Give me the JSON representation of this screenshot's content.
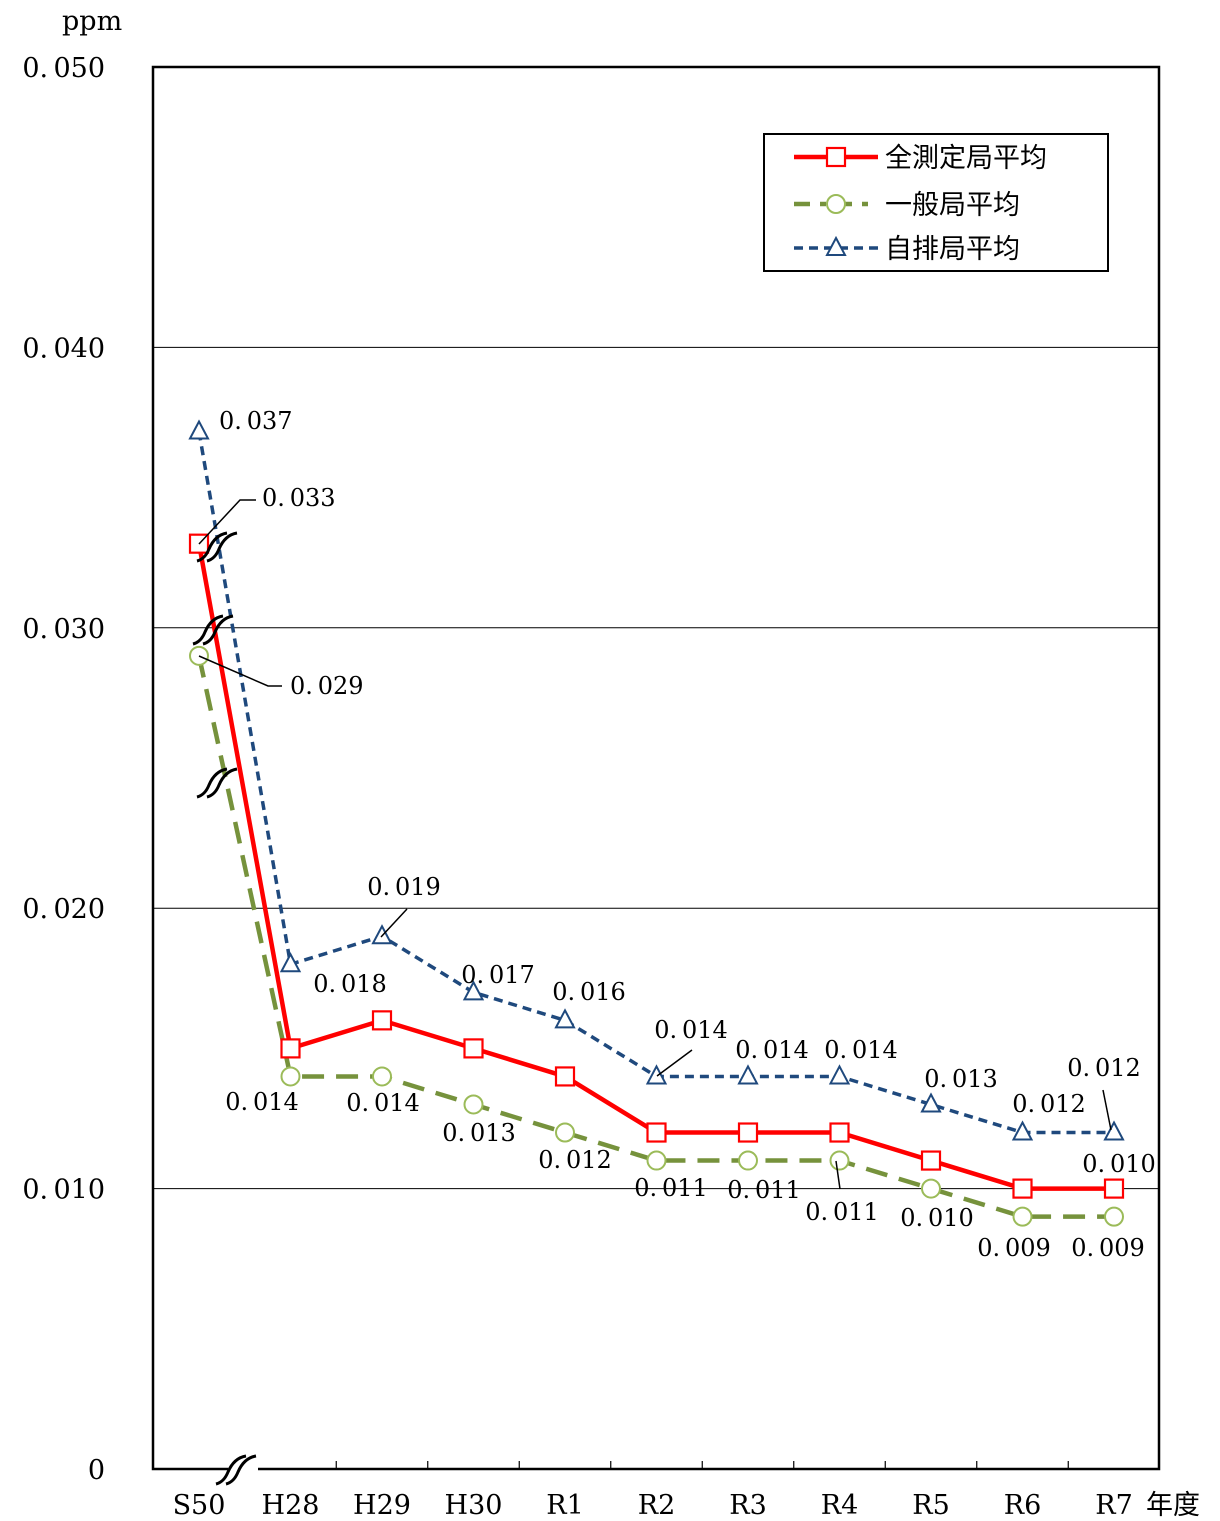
{
  "chart_data": {
    "type": "line",
    "ylabel": "ppm",
    "xlabel": "年度",
    "ylim": [
      0,
      0.05
    ],
    "y_ticks": [
      {
        "value": 0,
        "label": "0"
      },
      {
        "value": 0.01,
        "label": "0.010"
      },
      {
        "value": 0.02,
        "label": "0.020"
      },
      {
        "value": 0.03,
        "label": "0.030"
      },
      {
        "value": 0.04,
        "label": "0.040"
      },
      {
        "value": 0.05,
        "label": "0.050"
      }
    ],
    "categories": [
      "S50",
      "H28",
      "H29",
      "H30",
      "R1",
      "R2",
      "R3",
      "R4",
      "R5",
      "R6",
      "R7"
    ],
    "grid": true,
    "axis_break": "between S50 and H28",
    "legend_position": "top-right",
    "series": [
      {
        "name": "全測定局平均",
        "color": "#ff0000",
        "line_style": "solid",
        "marker": "square",
        "values": [
          0.033,
          0.015,
          0.016,
          0.015,
          0.014,
          0.012,
          0.012,
          0.012,
          0.011,
          0.01,
          0.01
        ],
        "labels": [
          "0.033",
          "",
          "",
          "",
          "",
          "",
          "",
          "",
          "",
          "",
          "0.010"
        ]
      },
      {
        "name": "一般局平均",
        "color": "#76923c",
        "line_style": "dashed",
        "marker": "circle",
        "values": [
          0.029,
          0.014,
          0.014,
          0.013,
          0.012,
          0.011,
          0.011,
          0.011,
          0.01,
          0.009,
          0.009
        ],
        "labels": [
          "0.029",
          "0.014",
          "0.014",
          "0.013",
          "0.012",
          "0.011",
          "0.011",
          "0.011",
          "0.010",
          "0.009",
          "0.009"
        ]
      },
      {
        "name": "自排局平均",
        "color": "#1f497d",
        "line_style": "dotted",
        "marker": "triangle",
        "values": [
          0.037,
          0.018,
          0.019,
          0.017,
          0.016,
          0.014,
          0.014,
          0.014,
          0.013,
          0.012,
          0.012
        ],
        "labels": [
          "0.037",
          "0.018",
          "0.019",
          "0.017",
          "0.016",
          "0.014",
          "0.014",
          "0.014",
          "0.013",
          "0.012",
          "0.012"
        ]
      }
    ]
  }
}
